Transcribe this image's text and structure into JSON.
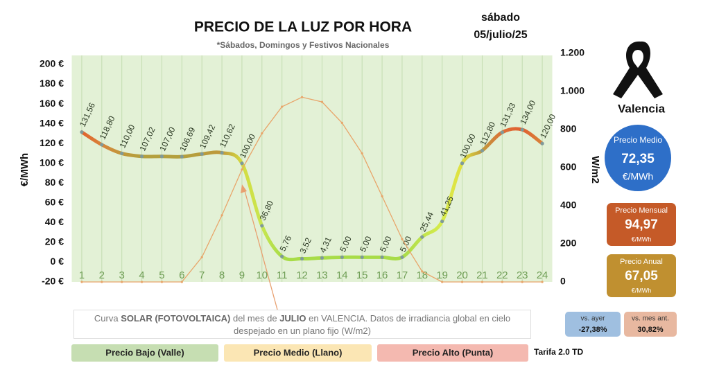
{
  "header": {
    "title": "PRECIO DE LA LUZ POR HORA",
    "subtitle": "*Sábados, Domingos y Festivos Nacionales",
    "weekday": "sábado",
    "date": "05/julio/25"
  },
  "chart_data": {
    "type": "line",
    "x": [
      1,
      2,
      3,
      4,
      5,
      6,
      7,
      8,
      9,
      10,
      11,
      12,
      13,
      14,
      15,
      16,
      17,
      18,
      19,
      20,
      21,
      22,
      23,
      24
    ],
    "xlim": [
      0.5,
      24.5
    ],
    "ylabel": "€/MWh",
    "y2label": "W/m2",
    "ylim": [
      -20,
      200
    ],
    "yticks": [
      {
        "value": -20,
        "label": "-20 €"
      },
      {
        "value": 0,
        "label": "0 €"
      },
      {
        "value": 20,
        "label": "20 €"
      },
      {
        "value": 40,
        "label": "40 €"
      },
      {
        "value": 60,
        "label": "60 €"
      },
      {
        "value": 80,
        "label": "80 €"
      },
      {
        "value": 100,
        "label": "100 €"
      },
      {
        "value": 120,
        "label": "120 €"
      },
      {
        "value": 140,
        "label": "140 €"
      },
      {
        "value": 160,
        "label": "160 €"
      },
      {
        "value": 180,
        "label": "180 €"
      },
      {
        "value": 200,
        "label": "200 €"
      }
    ],
    "y2lim": [
      0,
      1200
    ],
    "y2ticks": [
      0,
      200,
      400,
      600,
      800,
      {
        "value": 1000,
        "label": "1.000"
      },
      {
        "value": 1200,
        "label": "1.200"
      }
    ],
    "grid": "x",
    "series": [
      {
        "values": [
          131.56,
          118.8,
          110.0,
          107.02,
          107.0,
          106.69,
          109.42,
          110.62,
          100.0,
          36.8,
          5.76,
          3.52,
          4.31,
          5.0,
          5.0,
          5.0,
          5.0,
          25.44,
          41.25,
          100.0,
          112.8,
          131.33,
          134.0,
          120.0
        ],
        "value_labels": [
          "131,56",
          "118,80",
          "110,00",
          "107,02",
          "107,00",
          "106,69",
          "109,42",
          "110,62",
          "100,00",
          "36,80",
          "5,76",
          "3,52",
          "4,31",
          "5,00",
          "5,00",
          "5,00",
          "5,00",
          "25,44",
          "41,25",
          "100,00",
          "112,80",
          "131,33",
          "134,00",
          "120,00"
        ],
        "point_colors": [
          "#e2622e",
          "#d8843a",
          "#c0983c",
          "#b4a03e",
          "#b4a03e",
          "#b4a03e",
          "#b89c3c",
          "#c0983c",
          "#d4dc40",
          "#c8e650",
          "#a8dc48",
          "#a8dc48",
          "#a8dc48",
          "#a8dc48",
          "#a8dc48",
          "#a8dc48",
          "#a8dc48",
          "#c0e44c",
          "#d8ec4a",
          "#e0e040",
          "#c09a3c",
          "#dd7038",
          "#e06030",
          "#d8843a"
        ],
        "marker_color": "#7f9a9a"
      },
      {
        "axis": "y2",
        "color": "#e8a56a",
        "values": [
          0,
          0,
          0,
          0,
          0,
          0,
          130,
          350,
          590,
          780,
          920,
          970,
          945,
          835,
          675,
          450,
          225,
          55,
          0,
          0,
          0,
          0,
          0,
          0
        ]
      }
    ],
    "annotation": [
      "Curva ",
      "SOLAR (FOTOVOLTAICA)",
      " del mes de ",
      "JULIO",
      " en VALENCIA. Datos de irradiancia global en cielo despejado en un plano fijo (W/m2)"
    ]
  },
  "panel": {
    "city": "Valencia",
    "average": {
      "label": "Precio Medio",
      "value": "72,35",
      "unit": "€/MWh",
      "color": "#2e6fc8"
    },
    "monthly": {
      "label": "Precio Mensual",
      "value": "94,97",
      "unit": "€/MWh",
      "color": "#c55a28"
    },
    "annual": {
      "label": "Precio Anual",
      "value": "67,05",
      "unit": "€/MWh",
      "color": "#c09030"
    },
    "vs_yesterday": {
      "label": "vs. ayer",
      "value": "-27,38%",
      "color": "#9fbfe0"
    },
    "vs_month": {
      "label": "vs. mes ant.",
      "value": "30,82%",
      "color": "#e8b8a0"
    }
  },
  "legend": [
    {
      "label": "Precio Bajo (Valle)",
      "color": "#c6deb2"
    },
    {
      "label": "Precio Medio (Llano)",
      "color": "#fbe6b4"
    },
    {
      "label": "Precio Alto (Punta)",
      "color": "#f4b9b0"
    }
  ],
  "tariff": "Tarifa 2.0 TD"
}
